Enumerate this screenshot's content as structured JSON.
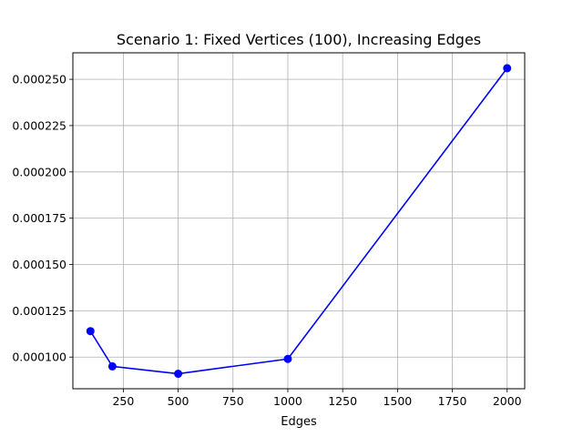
{
  "chart_data": {
    "type": "line",
    "title": "Scenario 1: Fixed Vertices (100), Increasing Edges",
    "xlabel": "Edges",
    "ylabel": "",
    "x": [
      100,
      200,
      500,
      1000,
      2000
    ],
    "series": [
      {
        "values": [
          0.000114,
          9.5e-05,
          9.1e-05,
          9.9e-05,
          0.000256
        ],
        "color": "#0000ff",
        "marker": "circle"
      }
    ],
    "xlim": [
      20,
      2080
    ],
    "ylim": [
      8.29e-05,
      0.0002643
    ],
    "xticks": [
      250,
      500,
      750,
      1000,
      1250,
      1500,
      1750,
      2000
    ],
    "xtick_labels": [
      "250",
      "500",
      "750",
      "1000",
      "1250",
      "1500",
      "1750",
      "2000"
    ],
    "yticks": [
      0.0001,
      0.000125,
      0.00015,
      0.000175,
      0.0002,
      0.000225,
      0.00025
    ],
    "ytick_labels": [
      "0.000100",
      "0.000125",
      "0.000150",
      "0.000175",
      "0.000200",
      "0.000225",
      "0.000250"
    ],
    "grid": true,
    "legend": "none"
  }
}
